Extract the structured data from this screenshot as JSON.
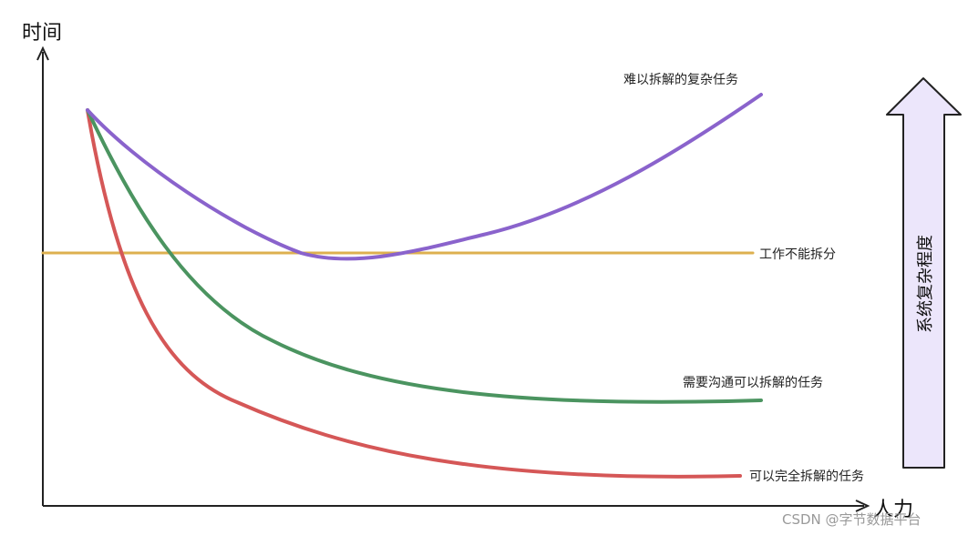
{
  "chart_data": {
    "type": "line",
    "title": "",
    "ylabel": "时间",
    "xlabel": "人力",
    "complexity_arrow": {
      "label": "系统复杂程度",
      "fill": "#ece6fb",
      "stroke": "#222222"
    },
    "series": [
      {
        "name": "难以拆解的复杂任务",
        "color": "#8a63cc"
      },
      {
        "name": "工作不能拆分",
        "color": "#ddb04f"
      },
      {
        "name": "需要沟通可以拆解的任务",
        "color": "#4b9460"
      },
      {
        "name": "可以完全拆解的任务",
        "color": "#d55757"
      }
    ],
    "grid": false,
    "legend": "inline-right"
  },
  "watermark": "CSDN @字节数据平台"
}
